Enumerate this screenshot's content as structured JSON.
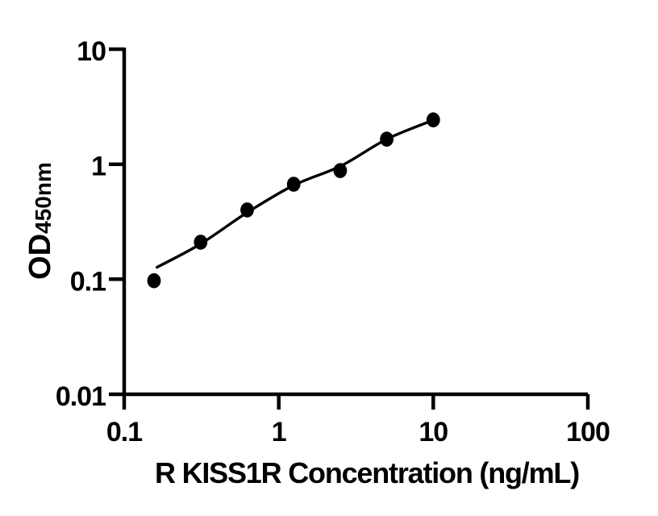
{
  "figure": {
    "background_color": "#ffffff",
    "ink_color": "#000000"
  },
  "chart_data": {
    "type": "scatter",
    "title": "",
    "xlabel": "R KISS1R Concentration (ng/mL)",
    "ylabel": "OD",
    "ylabel_sub": "450nm",
    "x_scale": "log",
    "y_scale": "log",
    "xlim": [
      0.1,
      100
    ],
    "ylim": [
      0.01,
      10
    ],
    "x_ticks": [
      0.1,
      1,
      10,
      100
    ],
    "x_tick_labels": [
      "0.1",
      "1",
      "10",
      "100"
    ],
    "y_ticks": [
      10,
      1,
      0.1,
      0.01
    ],
    "y_tick_labels": [
      "10",
      "1",
      "0.1",
      "0.01"
    ],
    "grid": false,
    "legend": false,
    "series": [
      {
        "name": "fit-curve",
        "type": "line",
        "color": "#000000",
        "x": [
          0.163,
          0.3125,
          0.625,
          1.25,
          2.5,
          5,
          10
        ],
        "y": [
          0.127,
          0.203,
          0.38,
          0.656,
          0.96,
          1.65,
          2.42
        ]
      },
      {
        "name": "standard-points",
        "type": "scatter",
        "marker": "filled-circle",
        "color": "#000000",
        "x": [
          0.156,
          0.3125,
          0.625,
          1.25,
          2.5,
          5,
          10
        ],
        "y": [
          0.097,
          0.21,
          0.4,
          0.67,
          0.88,
          1.65,
          2.43
        ]
      }
    ]
  }
}
